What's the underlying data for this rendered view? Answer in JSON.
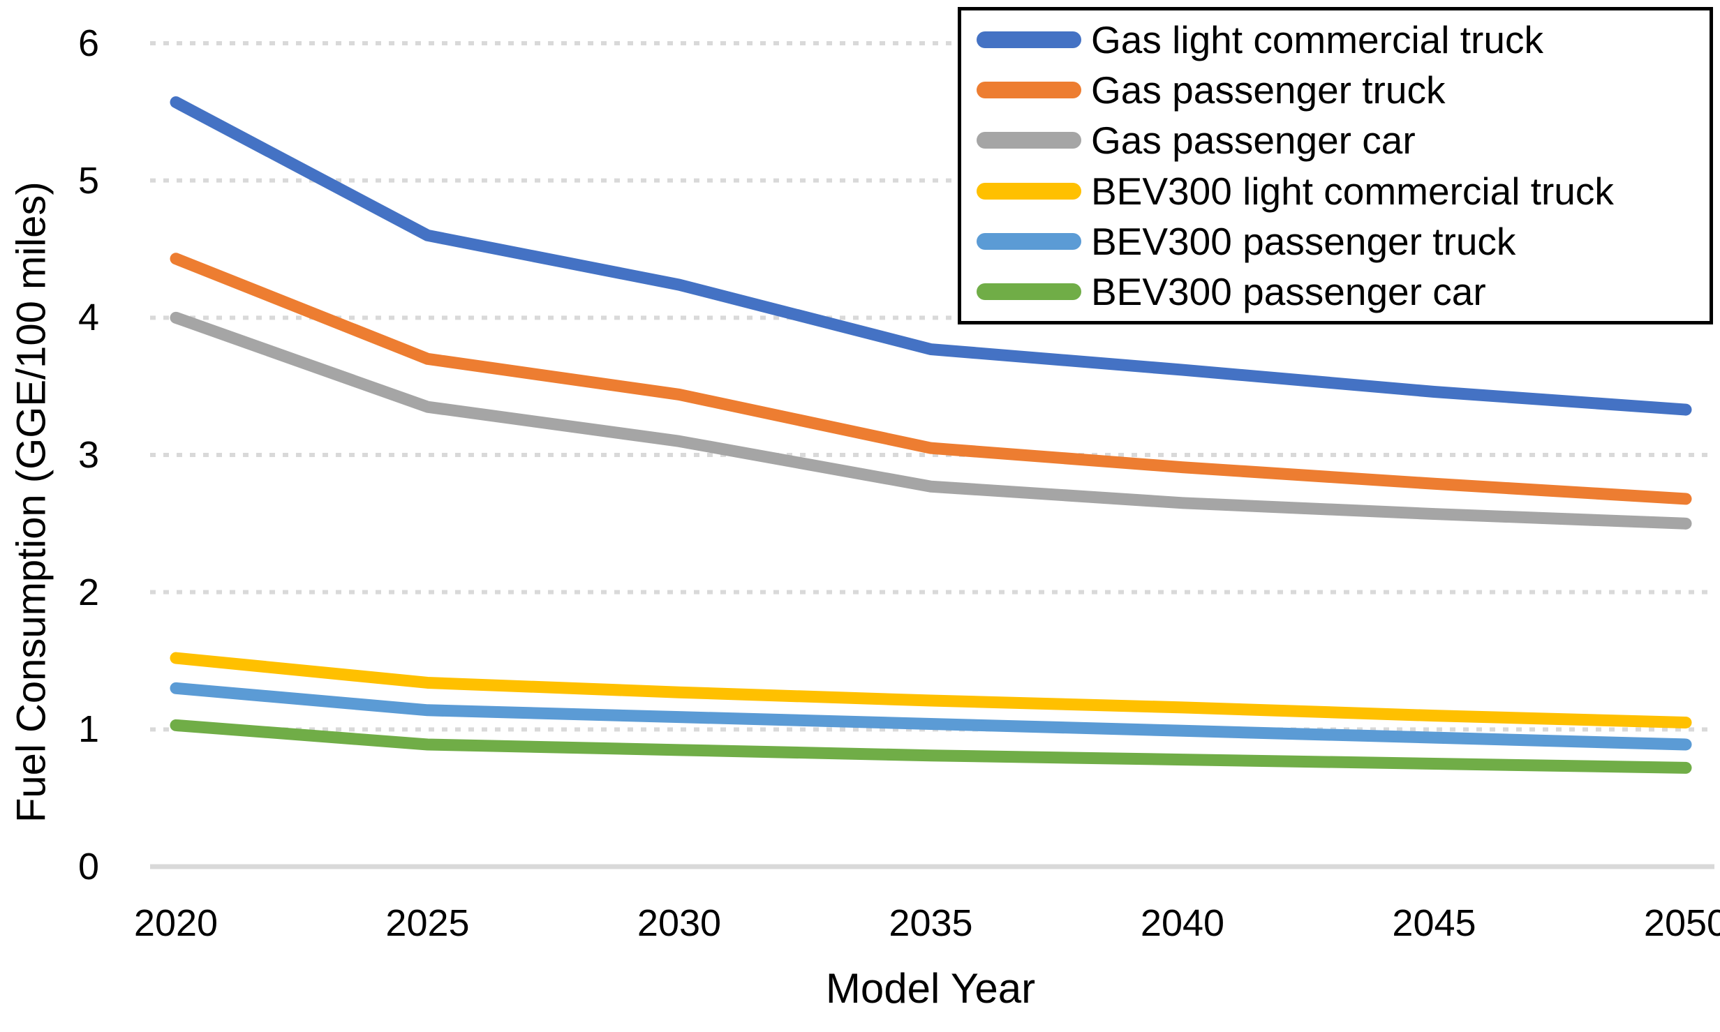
{
  "chart_data": {
    "type": "line",
    "title": "",
    "xlabel": "Model Year",
    "ylabel": "Fuel Consumption (GGE/100 miles)",
    "x": [
      2020,
      2025,
      2030,
      2035,
      2040,
      2045,
      2050
    ],
    "ylim": [
      0,
      6
    ],
    "ytick_step": 1,
    "yticks": [
      0,
      1,
      2,
      3,
      4,
      5,
      6
    ],
    "grid": "horizontal dashed gridlines on",
    "legend_position": "top-right",
    "series": [
      {
        "name": "Gas light commercial truck",
        "color": "#4472C4",
        "values": [
          5.57,
          4.6,
          4.24,
          3.77,
          3.62,
          3.46,
          3.33
        ]
      },
      {
        "name": "Gas passenger truck",
        "color": "#ED7D31",
        "values": [
          4.43,
          3.7,
          3.44,
          3.05,
          2.91,
          2.79,
          2.68
        ]
      },
      {
        "name": "Gas passenger car",
        "color": "#A5A5A5",
        "values": [
          4.0,
          3.35,
          3.1,
          2.77,
          2.65,
          2.57,
          2.5
        ]
      },
      {
        "name": "BEV300 light commercial truck",
        "color": "#FFC000",
        "values": [
          1.52,
          1.34,
          1.27,
          1.21,
          1.16,
          1.1,
          1.05
        ]
      },
      {
        "name": "BEV300 passenger truck",
        "color": "#5B9BD5",
        "values": [
          1.3,
          1.14,
          1.09,
          1.04,
          0.99,
          0.94,
          0.89
        ]
      },
      {
        "name": "BEV300 passenger car",
        "color": "#70AD47",
        "values": [
          1.03,
          0.89,
          0.85,
          0.81,
          0.78,
          0.75,
          0.72
        ]
      }
    ],
    "gridline_color": "#D9D9D9",
    "axis_line_color": "#D9D9D9",
    "text_color": "#000000"
  }
}
